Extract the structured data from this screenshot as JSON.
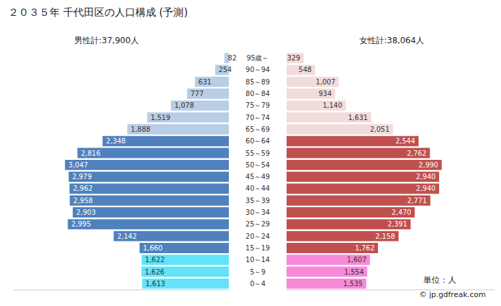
{
  "chart_data": {
    "type": "bar",
    "title": "２０３５年 千代田区の人口構成 (予測)",
    "orientation": "horizontal",
    "categories": [
      "95歳～",
      "90～94",
      "85～89",
      "80～84",
      "75～79",
      "70～74",
      "65～69",
      "60～64",
      "55～59",
      "50～54",
      "45～49",
      "40～44",
      "35～39",
      "30～34",
      "25～29",
      "20～24",
      "15～19",
      "10～14",
      "5～9",
      "0～4"
    ],
    "series": [
      {
        "name": "男性計:37,900人",
        "values": [
          82,
          254,
          631,
          777,
          1078,
          1519,
          1888,
          2348,
          2816,
          3047,
          2979,
          2962,
          2958,
          2903,
          2995,
          2142,
          1660,
          1622,
          1626,
          1613
        ],
        "value_labels": [
          "82",
          "254",
          "631",
          "777",
          "1,078",
          "1,519",
          "1,888",
          "2,348",
          "2,816",
          "3,047",
          "2,979",
          "2,962",
          "2,958",
          "2,903",
          "2,995",
          "2,142",
          "1,660",
          "1,622",
          "1,626",
          "1,613"
        ],
        "colors": [
          "#b9cde5",
          "#b9cde5",
          "#b9cde5",
          "#b9cde5",
          "#b9cde5",
          "#b9cde5",
          "#b9cde5",
          "#4f81bd",
          "#4f81bd",
          "#4f81bd",
          "#4f81bd",
          "#4f81bd",
          "#4f81bd",
          "#4f81bd",
          "#4f81bd",
          "#4f81bd",
          "#4f81bd",
          "#62e3f8",
          "#62e3f8",
          "#62e3f8"
        ]
      },
      {
        "name": "女性計:38,064人",
        "values": [
          329,
          548,
          1007,
          934,
          1140,
          1631,
          2051,
          2544,
          2762,
          2990,
          2940,
          2940,
          2771,
          2470,
          2391,
          2158,
          1762,
          1607,
          1554,
          1535
        ],
        "value_labels": [
          "329",
          "548",
          "1,007",
          "934",
          "1,140",
          "1,631",
          "2,051",
          "2,544",
          "2,762",
          "2,990",
          "2,940",
          "2,940",
          "2,771",
          "2,470",
          "2,391",
          "2,158",
          "1,762",
          "1,607",
          "1,554",
          "1,535"
        ],
        "colors": [
          "#f2dcdb",
          "#f2dcdb",
          "#f2dcdb",
          "#f2dcdb",
          "#f2dcdb",
          "#f2dcdb",
          "#f2dcdb",
          "#c0504d",
          "#c0504d",
          "#c0504d",
          "#c0504d",
          "#c0504d",
          "#c0504d",
          "#c0504d",
          "#c0504d",
          "#c0504d",
          "#c0504d",
          "#f68ad8",
          "#f68ad8",
          "#f68ad8"
        ]
      }
    ],
    "xlim": [
      0,
      4000
    ],
    "data_labels": true,
    "tick_labels": "y",
    "grid": false,
    "annotations": [
      "単位：人",
      "© jp.gdfreak.com"
    ]
  }
}
